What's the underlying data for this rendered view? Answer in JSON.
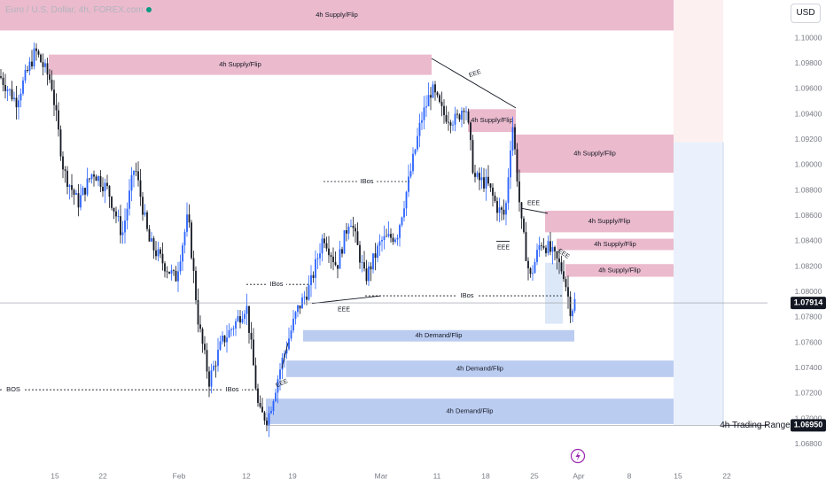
{
  "symbol": {
    "name": "Euro / U.S. Dollar, 4h, FOREX.com"
  },
  "currency_button": "USD",
  "chart_data": {
    "type": "candlestick",
    "y_axis": {
      "ticks": [
        "1.10000",
        "1.09800",
        "1.09600",
        "1.09400",
        "1.09200",
        "1.09000",
        "1.08800",
        "1.08600",
        "1.08400",
        "1.08200",
        "1.08000",
        "1.07800",
        "1.07600",
        "1.07400",
        "1.07200",
        "1.07000",
        "1.06800"
      ],
      "range": [
        1.0675,
        1.103
      ]
    },
    "x_axis": {
      "ticks": [
        "15",
        "22",
        "Feb",
        "12",
        "19",
        "Mar",
        "11",
        "18",
        "25",
        "Apr",
        "8",
        "15",
        "22"
      ]
    },
    "price_labels": [
      {
        "text": "1.07914",
        "value": 1.07914,
        "style": "dark"
      },
      {
        "text": "1.06950",
        "value": 1.0695,
        "style": "dark",
        "note": "4h Trading Range"
      }
    ],
    "zones": [
      {
        "label": "4h Supply/Flip",
        "kind": "supply",
        "top": 1.103,
        "bottom": 1.1006,
        "from": -1,
        "to": 760
      },
      {
        "label": "4h Supply/Flip",
        "kind": "supply",
        "top": 1.0987,
        "bottom": 1.0971,
        "from": 55,
        "to": 487
      },
      {
        "label": "4h Supply/Flip",
        "kind": "supply",
        "top": 1.0944,
        "bottom": 1.0926,
        "from": 528,
        "to": 582
      },
      {
        "label": "4h Supply/Flip",
        "kind": "supply",
        "top": 1.0924,
        "bottom": 1.0894,
        "from": 582,
        "to": 760
      },
      {
        "label": "4h Supply/Flip",
        "kind": "supply",
        "top": 1.0864,
        "bottom": 1.0847,
        "from": 615,
        "to": 760
      },
      {
        "label": "4h Supply/Flip",
        "kind": "supply",
        "top": 1.0842,
        "bottom": 1.0833,
        "from": 628,
        "to": 760
      },
      {
        "label": "4h Supply/Flip",
        "kind": "supply",
        "top": 1.0822,
        "bottom": 1.0812,
        "from": 638,
        "to": 760
      },
      {
        "label": "4h Demand/Flip",
        "kind": "demand",
        "top": 1.077,
        "bottom": 1.0761,
        "from": 342,
        "to": 648
      },
      {
        "label": "4h Demand/Flip",
        "kind": "demand",
        "top": 1.0746,
        "bottom": 1.0733,
        "from": 323,
        "to": 760
      },
      {
        "label": "4h Demand/Flip",
        "kind": "demand",
        "top": 1.0716,
        "bottom": 1.0696,
        "from": 300,
        "to": 760
      }
    ],
    "trading_range_label": "4h Trading Range",
    "structure_labels": [
      {
        "text": "BOS",
        "value": 1.0723
      },
      {
        "text": "IBos",
        "value": 1.0723
      },
      {
        "text": "IBos",
        "value": 1.0806
      },
      {
        "text": "IBos",
        "value": 1.0887
      },
      {
        "text": "IBos",
        "value": 1.0797
      }
    ],
    "liquidity_labels": [
      "EEE",
      "EEE",
      "EEE",
      "EEE",
      "EEE",
      "EEE"
    ],
    "current_price": 1.07914
  }
}
